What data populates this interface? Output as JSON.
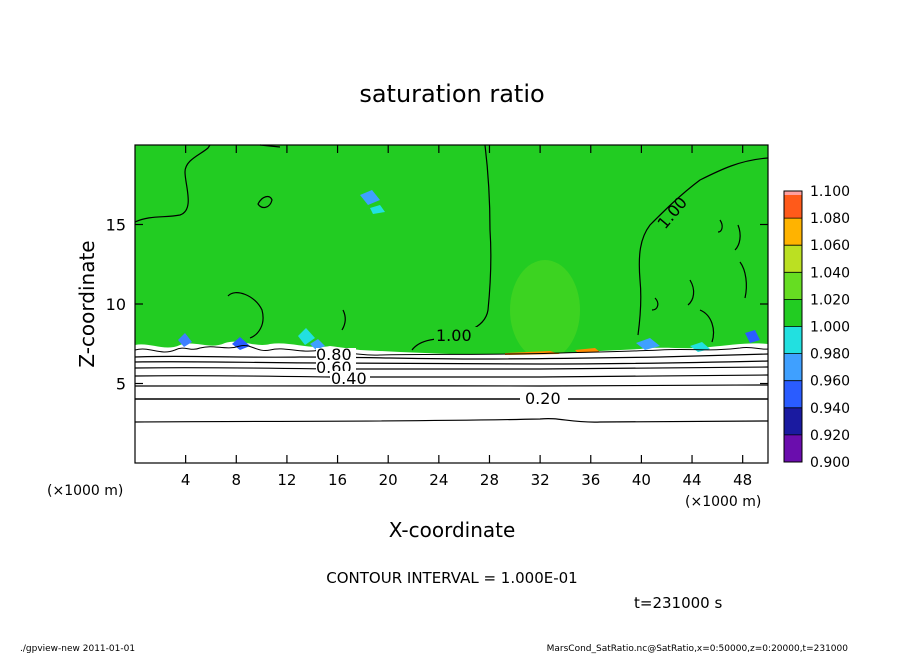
{
  "chart_data": {
    "type": "heatmap",
    "title": "saturation ratio",
    "xlabel": "X-coordinate",
    "ylabel": "Z-coordinate",
    "x_unit": "(×1000 m)",
    "y_unit": "(×1000 m)",
    "xlim": [
      0,
      50
    ],
    "ylim": [
      0,
      20
    ],
    "x_ticks": [
      4,
      8,
      12,
      16,
      20,
      24,
      28,
      32,
      36,
      40,
      44,
      48
    ],
    "y_ticks": [
      5,
      10,
      15
    ],
    "colorbar": {
      "levels": [
        "0.900",
        "0.920",
        "0.940",
        "0.960",
        "0.980",
        "1.000",
        "1.020",
        "1.040",
        "1.060",
        "1.080",
        "1.100"
      ],
      "colors": [
        "#6a0dad",
        "#1a1aa0",
        "#2a5cff",
        "#3fa0ff",
        "#22e0e0",
        "#22cc22",
        "#66dd22",
        "#bbe022",
        "#ffb300",
        "#ff5a1a",
        "#ff9f9f"
      ]
    },
    "contour_labels": [
      {
        "text": "1.00",
        "x": 26.5,
        "z": 8.0
      },
      {
        "text": "1.00",
        "x": 43.2,
        "z": 15.8
      },
      {
        "text": "0.80",
        "x": 15.5,
        "z": 6.7
      },
      {
        "text": "0.60",
        "x": 15.7,
        "z": 6.0
      },
      {
        "text": "0.40",
        "x": 16.8,
        "z": 5.3
      },
      {
        "text": "0.20",
        "x": 32.5,
        "z": 4.0
      }
    ],
    "stable_layer_top_z": 7.3
  },
  "contour_interval": "CONTOUR INTERVAL = 1.000E-01",
  "time_label": "t=231000 s",
  "footer_left": "./gpview-new  2011-01-01",
  "footer_right": "MarsCond_SatRatio.nc@SatRatio,x=0:50000,z=0:20000,t=231000"
}
